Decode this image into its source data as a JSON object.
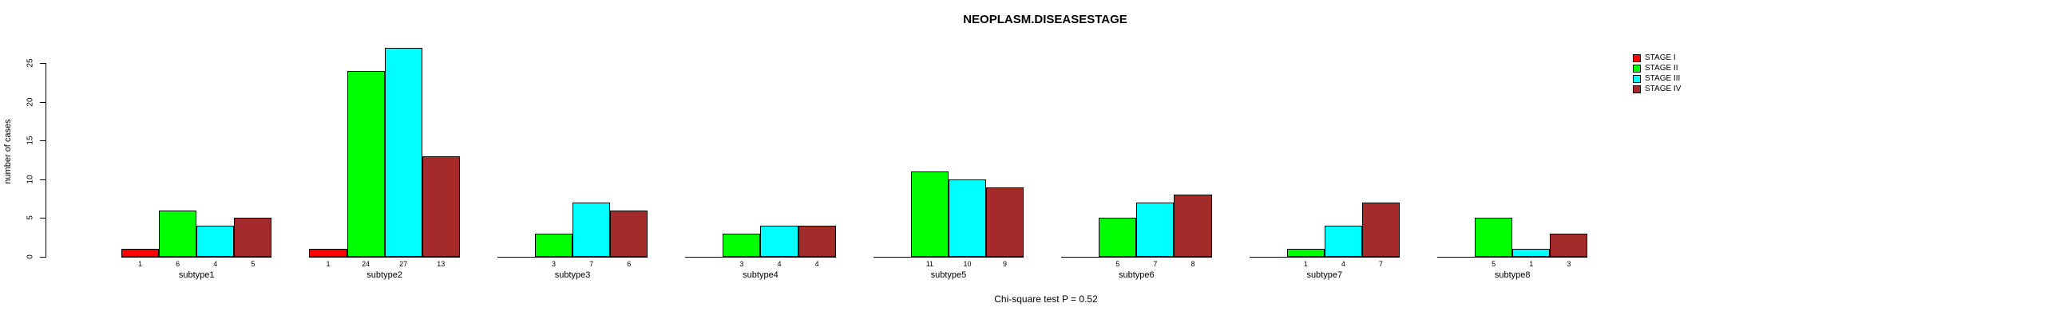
{
  "title": "NEOPLASM.DISEASESTAGE",
  "caption": "Chi-square test P = 0.52",
  "y_axis": {
    "label": "number of cases",
    "ticks": [
      0,
      5,
      10,
      15,
      20,
      25
    ]
  },
  "legend": {
    "position": "top-right",
    "items": [
      {
        "label": "STAGE I",
        "color": "#FF0000"
      },
      {
        "label": "STAGE II",
        "color": "#00FF00"
      },
      {
        "label": "STAGE III",
        "color": "#00FFFF"
      },
      {
        "label": "STAGE IV",
        "color": "#A52A2A"
      }
    ]
  },
  "chart_data": {
    "type": "bar",
    "title": "NEOPLASM.DISEASESTAGE",
    "xlabel": "",
    "ylabel": "number of cases",
    "ylim": [
      0,
      25
    ],
    "yticks": [
      0,
      5,
      10,
      15,
      20,
      25
    ],
    "grid": false,
    "legend_position": "top-right",
    "bar_value_labels_shown": true,
    "zero_bars_hidden": true,
    "annotation": "Chi-square test P = 0.52",
    "categories": [
      "subtype1",
      "subtype2",
      "subtype3",
      "subtype4",
      "subtype5",
      "subtype6",
      "subtype7",
      "subtype8"
    ],
    "series": [
      {
        "name": "STAGE I",
        "color": "#FF0000",
        "values": [
          1,
          1,
          0,
          0,
          0,
          0,
          0,
          0
        ]
      },
      {
        "name": "STAGE II",
        "color": "#00FF00",
        "values": [
          6,
          24,
          3,
          3,
          11,
          5,
          1,
          5
        ]
      },
      {
        "name": "STAGE III",
        "color": "#00FFFF",
        "values": [
          4,
          27,
          7,
          4,
          10,
          7,
          4,
          1
        ]
      },
      {
        "name": "STAGE IV",
        "color": "#A52A2A",
        "values": [
          5,
          13,
          6,
          4,
          9,
          8,
          7,
          3
        ]
      }
    ]
  }
}
